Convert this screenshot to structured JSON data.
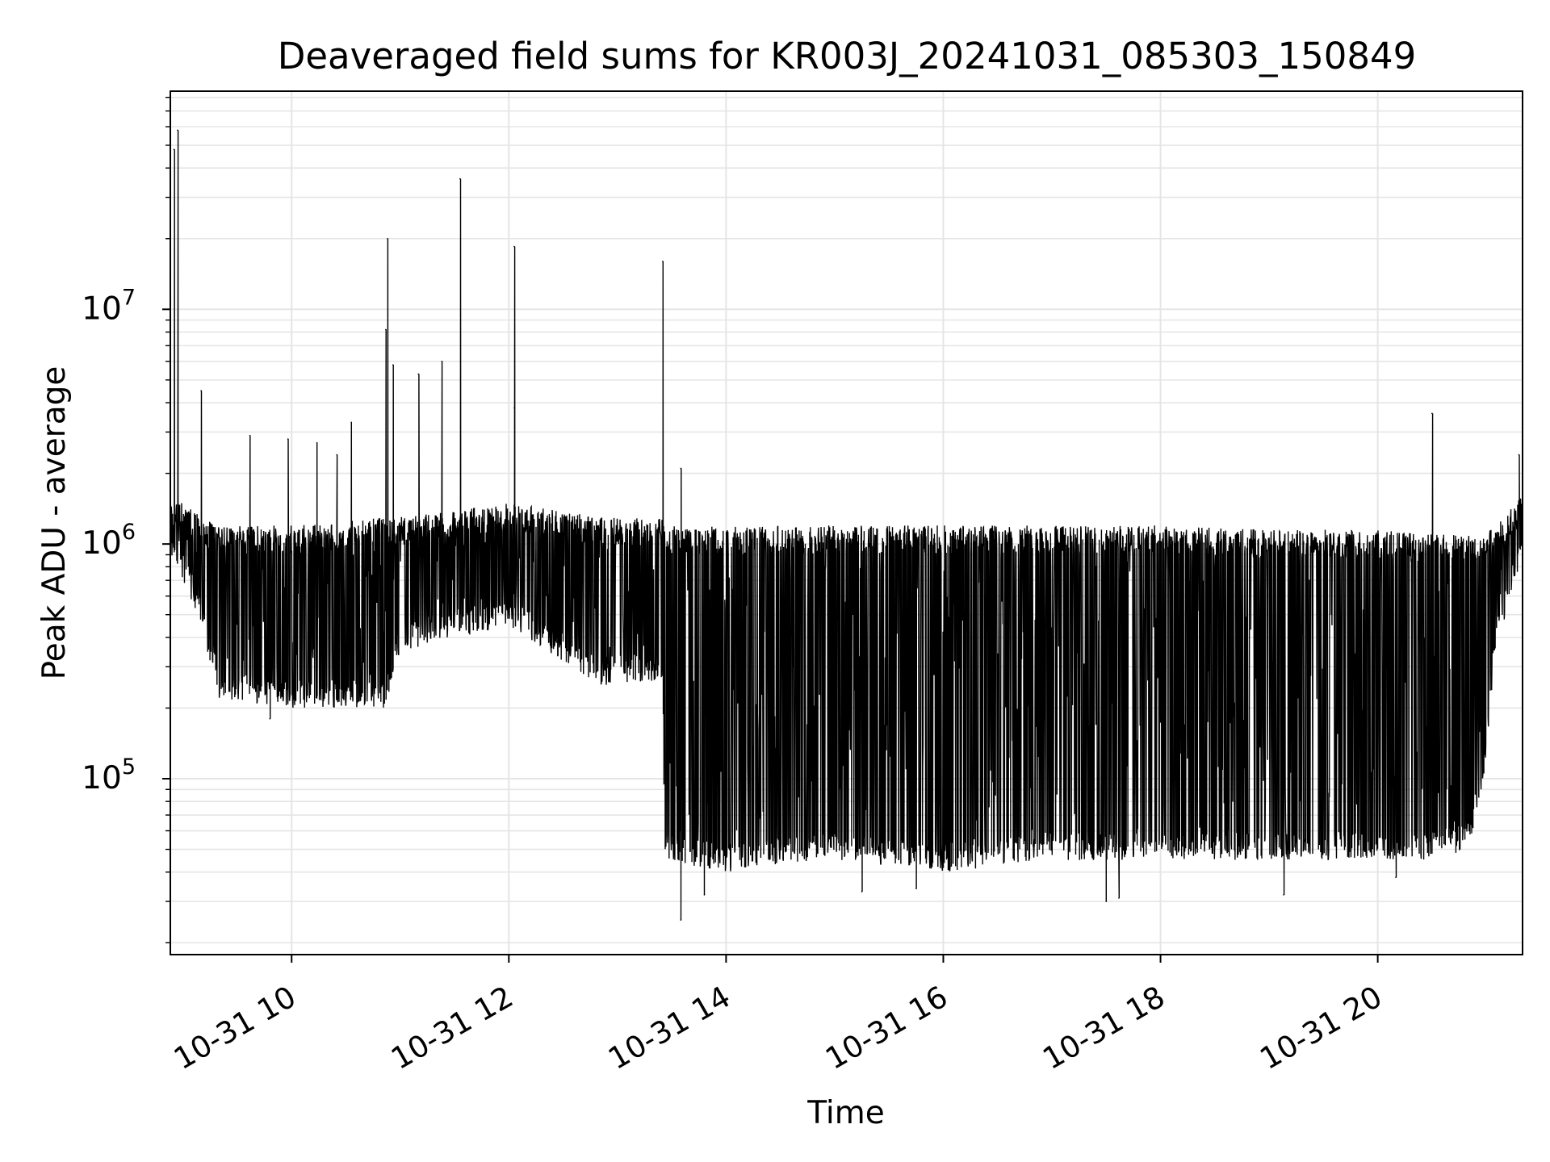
{
  "chart_data": {
    "type": "line",
    "title": "Deaveraged field sums for KR003J_20241031_085303_150849",
    "xlabel": "Time",
    "ylabel": "Peak ADU - average",
    "yscale": "log",
    "grid": true,
    "legend": "none",
    "line_color": "#000000",
    "grid_color": "#e5e5e5",
    "x_range": [
      "2024-10-31 08:53",
      "2024-10-31 21:20"
    ],
    "y_range": [
      17800,
      85000000
    ],
    "x_ticks": [
      {
        "time": "2024-10-31 10:00",
        "label": "10-31 10"
      },
      {
        "time": "2024-10-31 12:00",
        "label": "10-31 12"
      },
      {
        "time": "2024-10-31 14:00",
        "label": "10-31 14"
      },
      {
        "time": "2024-10-31 16:00",
        "label": "10-31 16"
      },
      {
        "time": "2024-10-31 18:00",
        "label": "10-31 18"
      },
      {
        "time": "2024-10-31 20:00",
        "label": "10-31 20"
      }
    ],
    "y_ticks": [
      {
        "value": 100000,
        "base": "10",
        "exp": "5"
      },
      {
        "value": 1000000,
        "base": "10",
        "exp": "6"
      },
      {
        "value": 10000000,
        "base": "10",
        "exp": "7"
      }
    ],
    "series": [
      {
        "envelope": {
          "x": [
            "2024-10-31 08:53",
            "2024-10-31 09:00",
            "2024-10-31 09:10",
            "2024-10-31 09:20",
            "2024-10-31 10:00",
            "2024-10-31 10:52",
            "2024-10-31 11:00",
            "2024-10-31 12:00",
            "2024-10-31 12:50",
            "2024-10-31 13:25",
            "2024-10-31 13:26",
            "2024-10-31 14:00",
            "2024-10-31 15:00",
            "2024-10-31 16:00",
            "2024-10-31 17:00",
            "2024-10-31 18:00",
            "2024-10-31 19:00",
            "2024-10-31 20:00",
            "2024-10-31 20:30",
            "2024-10-31 20:50",
            "2024-10-31 20:58",
            "2024-10-31 21:05",
            "2024-10-31 21:20"
          ],
          "upper": [
            1500000,
            1500000,
            1300000,
            1200000,
            1200000,
            1300000,
            1300000,
            1500000,
            1300000,
            1300000,
            1200000,
            1200000,
            1200000,
            1200000,
            1200000,
            1200000,
            1150000,
            1150000,
            1100000,
            1100000,
            1100000,
            1200000,
            1600000
          ],
          "lower": [
            900000,
            700000,
            450000,
            220000,
            200000,
            200000,
            350000,
            450000,
            250000,
            260000,
            45000,
            40000,
            45000,
            40000,
            45000,
            45000,
            45000,
            45000,
            45000,
            50000,
            90000,
            350000,
            900000
          ]
        },
        "spikes": [
          {
            "x": "2024-10-31 08:55",
            "y": 48000000
          },
          {
            "x": "2024-10-31 08:57",
            "y": 58000000
          },
          {
            "x": "2024-10-31 09:10",
            "y": 4500000
          },
          {
            "x": "2024-10-31 09:37",
            "y": 2900000
          },
          {
            "x": "2024-10-31 09:58",
            "y": 2800000
          },
          {
            "x": "2024-10-31 10:14",
            "y": 2700000
          },
          {
            "x": "2024-10-31 10:25",
            "y": 2400000
          },
          {
            "x": "2024-10-31 10:33",
            "y": 3300000
          },
          {
            "x": "2024-10-31 10:52",
            "y": 8200000
          },
          {
            "x": "2024-10-31 10:53",
            "y": 20000000
          },
          {
            "x": "2024-10-31 10:56",
            "y": 5800000
          },
          {
            "x": "2024-10-31 11:10",
            "y": 5300000
          },
          {
            "x": "2024-10-31 11:23",
            "y": 6000000
          },
          {
            "x": "2024-10-31 11:33",
            "y": 36000000
          },
          {
            "x": "2024-10-31 12:03",
            "y": 18500000
          },
          {
            "x": "2024-10-31 12:03",
            "y": 3800000
          },
          {
            "x": "2024-10-31 13:25",
            "y": 16000000
          },
          {
            "x": "2024-10-31 13:35",
            "y": 2100000
          },
          {
            "x": "2024-10-31 20:30",
            "y": 3600000
          },
          {
            "x": "2024-10-31 21:18",
            "y": 2400000
          }
        ],
        "dips": [
          {
            "x": "2024-10-31 09:48",
            "y": 180000
          },
          {
            "x": "2024-10-31 13:35",
            "y": 25000
          },
          {
            "x": "2024-10-31 13:48",
            "y": 32000
          },
          {
            "x": "2024-10-31 15:15",
            "y": 33000
          },
          {
            "x": "2024-10-31 15:45",
            "y": 34000
          },
          {
            "x": "2024-10-31 17:30",
            "y": 30000
          },
          {
            "x": "2024-10-31 17:37",
            "y": 31000
          },
          {
            "x": "2024-10-31 19:08",
            "y": 32000
          },
          {
            "x": "2024-10-31 20:10",
            "y": 38000
          }
        ]
      }
    ]
  }
}
